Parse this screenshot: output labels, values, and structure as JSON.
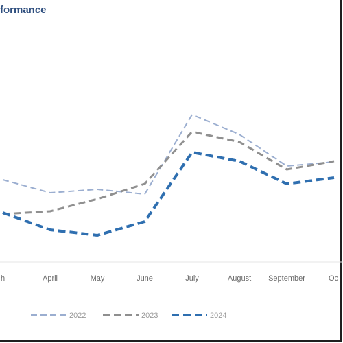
{
  "chart_data": {
    "type": "line",
    "title": "formance",
    "xlabel": "",
    "ylabel": "",
    "categories": [
      "h",
      "April",
      "May",
      "June",
      "July",
      "August",
      "September",
      "Oc"
    ],
    "grid": false,
    "legend_position": "bottom",
    "series": [
      {
        "name": "2022",
        "color": "#8aa0c8",
        "style": "dashed-light",
        "values": [
          262,
          281,
          276,
          283,
          167,
          196,
          242,
          236
        ]
      },
      {
        "name": "2023",
        "color": "#8a8a8a",
        "style": "dashed-medium",
        "values": [
          312,
          308,
          290,
          268,
          192,
          207,
          247,
          235
        ]
      },
      {
        "name": "2024",
        "color": "#2f6fb0",
        "style": "dashed-heavy",
        "values": [
          310,
          335,
          343,
          323,
          222,
          235,
          268,
          259
        ]
      }
    ]
  }
}
